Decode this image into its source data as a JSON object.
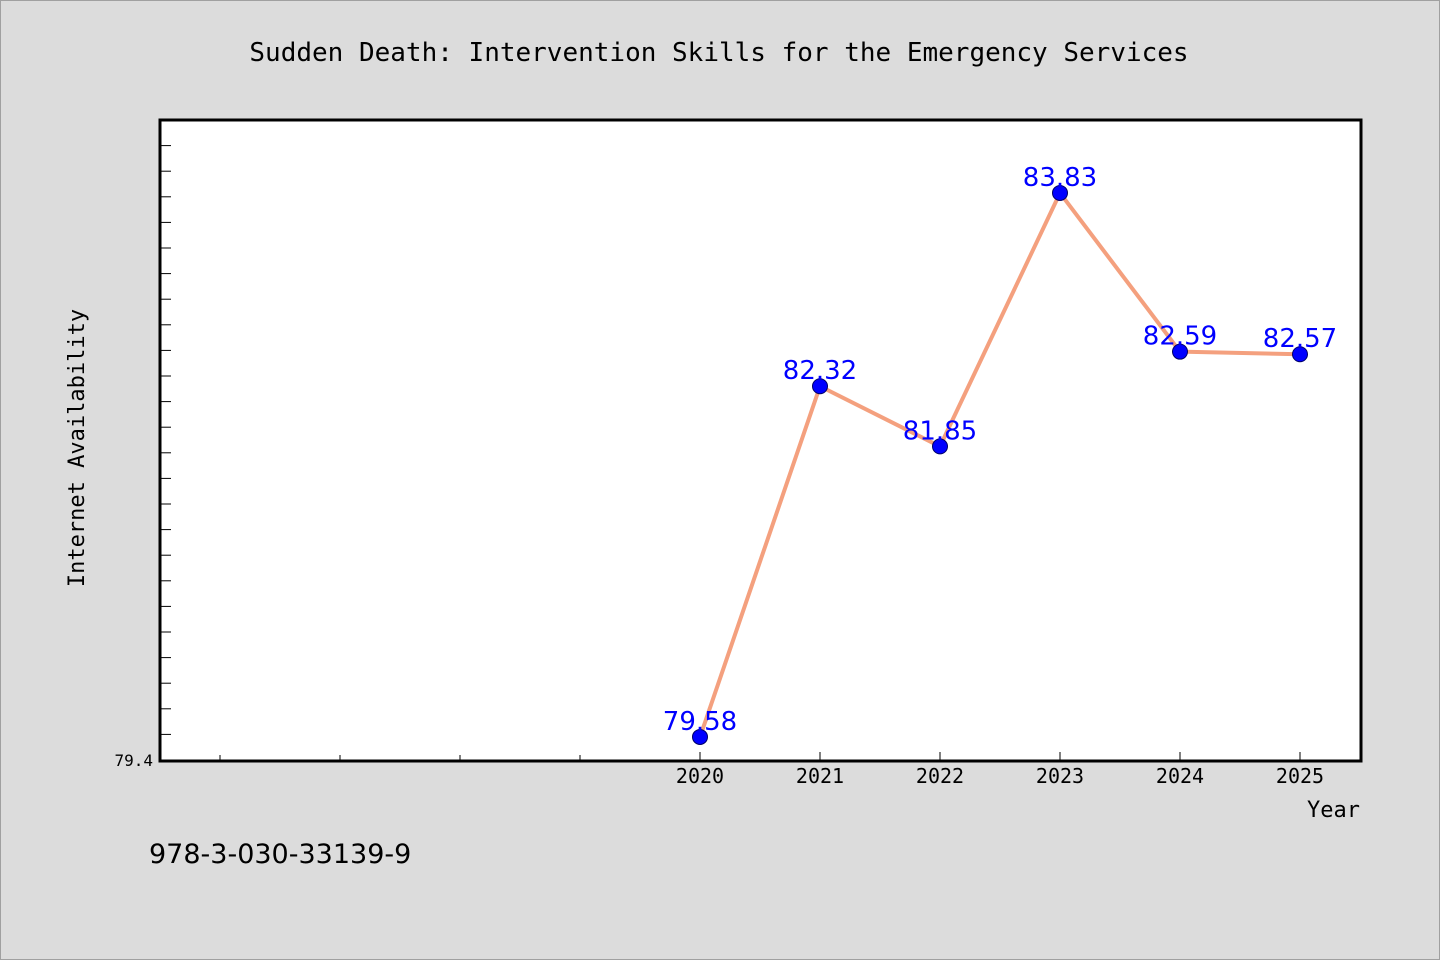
{
  "chart_data": {
    "type": "line",
    "title": "Sudden Death: Intervention Skills for the Emergency Services",
    "xlabel": "Year",
    "ylabel": "Internet Availability",
    "categories": [
      "2020",
      "2021",
      "2022",
      "2023",
      "2024",
      "2025"
    ],
    "series": [
      {
        "values": [
          79.58,
          82.32,
          81.85,
          83.83,
          82.59,
          82.57
        ]
      }
    ],
    "data_labels": [
      "79.58",
      "82.32",
      "81.85",
      "83.83",
      "82.59",
      "82.57"
    ],
    "ytick_labels": [
      "79.4"
    ],
    "ylim": [
      79.4,
      84.4
    ],
    "grid": false,
    "colors": {
      "line": "#f4a07e",
      "marker": "#0000ff",
      "label": "#0000ff"
    }
  },
  "footer": {
    "isbn": "978-3-030-33139-9"
  }
}
